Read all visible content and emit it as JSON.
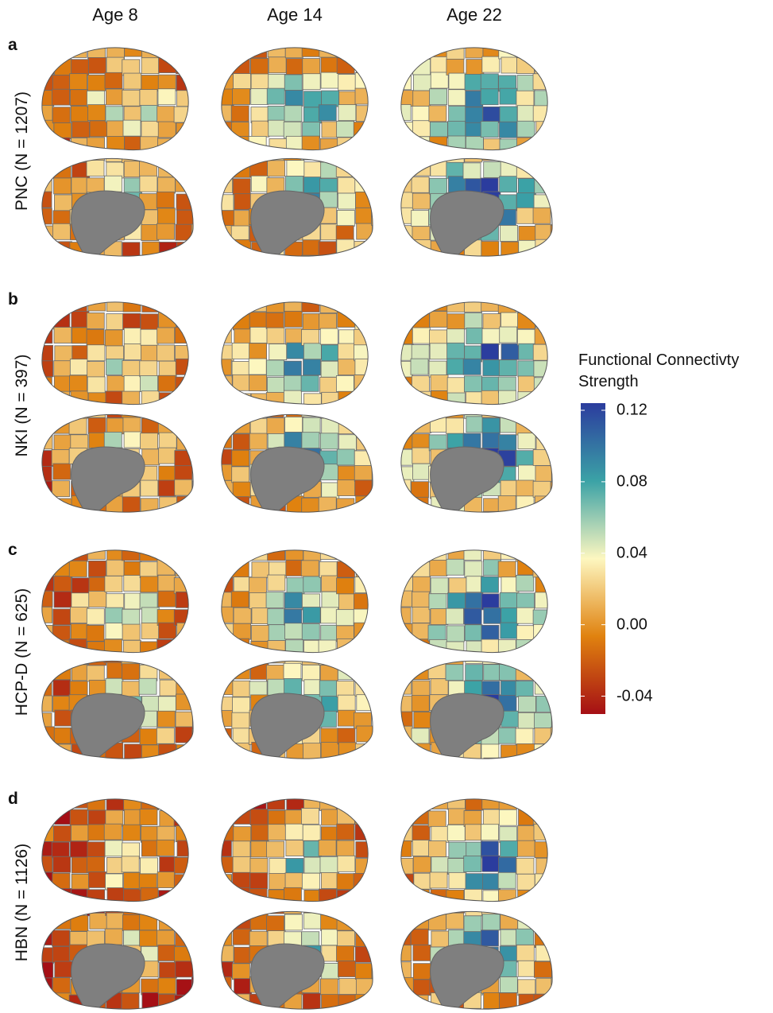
{
  "columns": [
    "Age 8",
    "Age 14",
    "Age 22"
  ],
  "rows": [
    {
      "letter": "a",
      "label": "PNC (N = 1207)"
    },
    {
      "letter": "b",
      "label": "NKI (N = 397)"
    },
    {
      "letter": "c",
      "label": "HCP-D (N = 625)"
    },
    {
      "letter": "d",
      "label": "HBN (N = 1126)"
    }
  ],
  "colorbar": {
    "title": "Functional Connectivty Strength",
    "lim": [
      -0.05,
      0.124
    ],
    "ticks": [
      0.12,
      0.08,
      0.04,
      {
        "value": 0,
        "label": "0.00"
      },
      -0.04
    ],
    "colors": [
      "#a50f15",
      "#e0820f",
      "#fdf7c0",
      "#3ba2a6",
      "#2b3c9e"
    ]
  }
}
